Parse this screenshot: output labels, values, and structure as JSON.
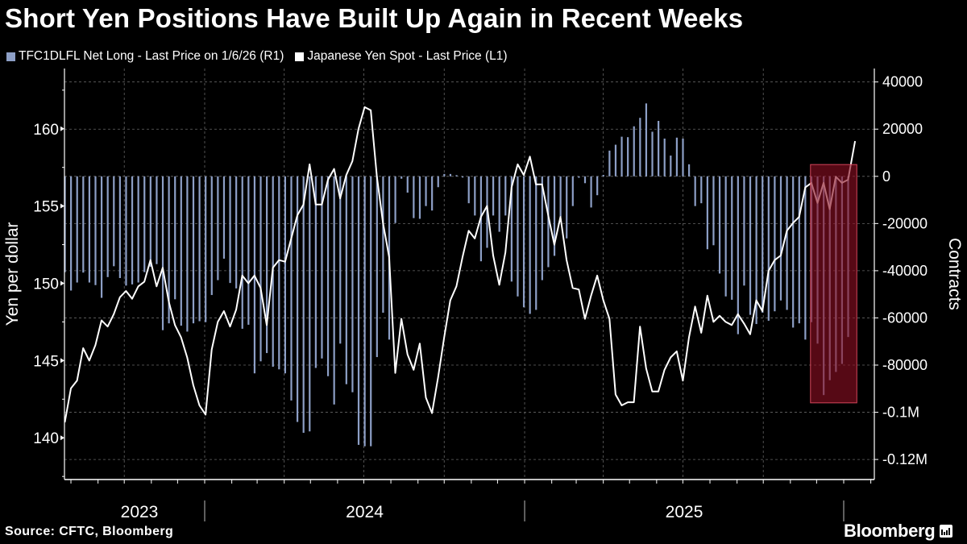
{
  "chart_data": {
    "type": "bar+line",
    "title": "Short Yen Positions Have Built Up Again in Recent Weeks",
    "source": "Source: CFTC, Bloomberg",
    "logo": "Bloomberg",
    "legend_position": "top-left",
    "grid": true,
    "ylabel_left": "Yen per dollar",
    "ylabel_right": "Contracts",
    "ylim_left": [
      137.3,
      163.9
    ],
    "ylim_right": [
      -128500,
      45700
    ],
    "yticks_left": [
      "140",
      "145",
      "150",
      "155",
      "160"
    ],
    "yticks_left_values": [
      140,
      145,
      150,
      155,
      160
    ],
    "yticks_right": [
      "40000",
      "20000",
      "0",
      "-20000",
      "-40000",
      "-60000",
      "-80000",
      "-0.1M",
      "-0.12M"
    ],
    "yticks_right_values": [
      40000,
      20000,
      0,
      -20000,
      -40000,
      -60000,
      -80000,
      -100000,
      -120000
    ],
    "xtick_labels": [
      "2023",
      "2024",
      "2025"
    ],
    "colors": {
      "bars": "#8d9fc6",
      "line": "#ffffff",
      "highlight_fill": "#8a0e22",
      "highlight_border": "#d4465a",
      "background": "#000000"
    },
    "highlight": {
      "x_start": "2025-11-24",
      "x_end": "2026-01-16",
      "y_top": 5000,
      "y_bottom": -96000,
      "axis": "right"
    },
    "x": [
      "2023-07-25",
      "2023-08-01",
      "2023-08-08",
      "2023-08-15",
      "2023-08-22",
      "2023-08-29",
      "2023-09-05",
      "2023-09-12",
      "2023-09-19",
      "2023-09-26",
      "2023-10-03",
      "2023-10-10",
      "2023-10-17",
      "2023-10-24",
      "2023-10-31",
      "2023-11-07",
      "2023-11-14",
      "2023-11-21",
      "2023-11-28",
      "2023-12-05",
      "2023-12-12",
      "2023-12-19",
      "2023-12-26",
      "2024-01-02",
      "2024-01-09",
      "2024-01-16",
      "2024-01-23",
      "2024-01-30",
      "2024-02-06",
      "2024-02-13",
      "2024-02-20",
      "2024-02-27",
      "2024-03-05",
      "2024-03-12",
      "2024-03-19",
      "2024-03-26",
      "2024-04-02",
      "2024-04-09",
      "2024-04-16",
      "2024-04-23",
      "2024-04-30",
      "2024-05-07",
      "2024-05-14",
      "2024-05-21",
      "2024-05-28",
      "2024-06-04",
      "2024-06-11",
      "2024-06-18",
      "2024-06-25",
      "2024-07-02",
      "2024-07-09",
      "2024-07-16",
      "2024-07-23",
      "2024-07-30",
      "2024-08-06",
      "2024-08-13",
      "2024-08-20",
      "2024-08-27",
      "2024-09-03",
      "2024-09-10",
      "2024-09-17",
      "2024-09-24",
      "2024-10-01",
      "2024-10-08",
      "2024-10-15",
      "2024-10-22",
      "2024-10-29",
      "2024-11-05",
      "2024-11-12",
      "2024-11-19",
      "2024-11-26",
      "2024-12-03",
      "2024-12-10",
      "2024-12-17",
      "2024-12-24",
      "2024-12-31",
      "2025-01-07",
      "2025-01-14",
      "2025-01-21",
      "2025-01-28",
      "2025-02-04",
      "2025-02-11",
      "2025-02-18",
      "2025-02-25",
      "2025-03-04",
      "2025-03-11",
      "2025-03-18",
      "2025-03-25",
      "2025-04-01",
      "2025-04-08",
      "2025-04-15",
      "2025-04-22",
      "2025-04-29",
      "2025-05-06",
      "2025-05-13",
      "2025-05-20",
      "2025-05-27",
      "2025-06-03",
      "2025-06-10",
      "2025-06-17",
      "2025-06-24",
      "2025-07-01",
      "2025-07-08",
      "2025-07-15",
      "2025-07-22",
      "2025-07-29",
      "2025-08-05",
      "2025-08-12",
      "2025-08-19",
      "2025-08-26",
      "2025-09-02",
      "2025-09-09",
      "2025-09-16",
      "2025-09-23",
      "2025-09-30",
      "2025-10-07",
      "2025-10-14",
      "2025-10-21",
      "2025-10-28",
      "2025-11-04",
      "2025-11-11",
      "2025-11-18",
      "2025-11-25",
      "2025-12-02",
      "2025-12-09",
      "2025-12-16",
      "2025-12-23",
      "2025-12-30",
      "2026-01-06",
      "2026-01-14"
    ],
    "series": [
      {
        "name": "TFC1DLFL Net Long - Last Price on 1/6/26 (R1)",
        "type": "bar",
        "axis": "right",
        "values": [
          -40600,
          -48400,
          -45000,
          -40800,
          -45000,
          -46100,
          -51500,
          -42700,
          -38100,
          -43100,
          -46300,
          -45800,
          -45000,
          -40600,
          -38300,
          -37200,
          -65200,
          -62300,
          -52100,
          -63300,
          -65800,
          -62300,
          -61400,
          -61800,
          -50300,
          -44000,
          -34900,
          -45200,
          -47500,
          -64600,
          -62900,
          -83500,
          -78400,
          -74900,
          -80700,
          -81800,
          -83500,
          -95000,
          -104100,
          -108700,
          -108100,
          -81200,
          -77200,
          -84700,
          -96700,
          -70900,
          -88100,
          -91500,
          -113800,
          -114400,
          -114400,
          -76600,
          -57800,
          -69200,
          -19800,
          -1000,
          -6900,
          -17700,
          -18000,
          -12600,
          -14500,
          -4600,
          1000,
          1000,
          500,
          -500,
          -11400,
          -16600,
          -36000,
          -30300,
          -16600,
          -23500,
          -16600,
          -44600,
          -50900,
          -55500,
          -58300,
          -56600,
          -44000,
          -38500,
          -33700,
          -17200,
          -26300,
          -12600,
          -600,
          -2900,
          -13200,
          -8000,
          600,
          10900,
          13400,
          16800,
          16600,
          21200,
          24800,
          30900,
          18900,
          23500,
          16000,
          8800,
          16400,
          16000,
          5100,
          -12600,
          -11400,
          -30900,
          -29200,
          -41200,
          -50900,
          -52300,
          -66900,
          -46300,
          -58700,
          -62600,
          -57800,
          -61200,
          -57200,
          -52600,
          -56600,
          -64100,
          -62300,
          -69200,
          -61800,
          -70900,
          -92700,
          -86400,
          -82900,
          -79500,
          -68100,
          null
        ]
      },
      {
        "name": "Japanese Yen Spot - Last Price (L1)",
        "type": "line",
        "axis": "left",
        "values": [
          141.0,
          143.2,
          143.7,
          145.8,
          145.0,
          146.0,
          147.6,
          147.2,
          148.0,
          149.1,
          149.5,
          149.0,
          149.8,
          150.1,
          151.5,
          149.8,
          151.0,
          148.8,
          147.3,
          146.5,
          145.2,
          143.4,
          142.1,
          141.5,
          145.7,
          147.5,
          148.2,
          147.2,
          148.3,
          150.5,
          150.0,
          150.5,
          149.7,
          147.3,
          151.0,
          151.5,
          151.4,
          152.9,
          154.4,
          155.1,
          157.7,
          155.1,
          155.1,
          156.7,
          157.4,
          155.5,
          157.0,
          157.9,
          160.0,
          161.4,
          161.2,
          156.9,
          153.9,
          151.7,
          144.2,
          147.7,
          145.4,
          144.4,
          146.1,
          142.6,
          141.6,
          143.9,
          146.5,
          148.9,
          149.8,
          151.7,
          153.4,
          152.9,
          154.3,
          155.0,
          151.8,
          149.9,
          152.0,
          156.2,
          157.7,
          157.0,
          158.2,
          156.4,
          156.4,
          154.4,
          152.5,
          154.3,
          151.5,
          149.7,
          149.6,
          147.7,
          149.2,
          150.5,
          148.9,
          147.7,
          142.8,
          142.1,
          142.3,
          142.3,
          147.2,
          144.5,
          143.0,
          143.0,
          144.4,
          145.2,
          145.6,
          143.7,
          146.5,
          148.5,
          146.8,
          149.2,
          147.5,
          147.9,
          147.5,
          147.3,
          148.0,
          147.4,
          146.7,
          148.9,
          148.2,
          150.8,
          151.5,
          151.8,
          153.4,
          153.9,
          154.3,
          156.2,
          156.5,
          155.2,
          156.5,
          154.8,
          156.9,
          156.5,
          156.7,
          159.2
        ]
      }
    ]
  }
}
